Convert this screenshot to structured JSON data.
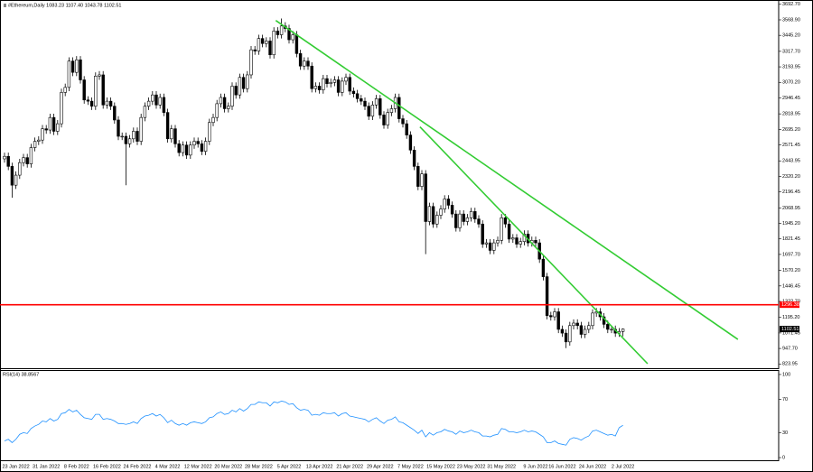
{
  "chart_data": [
    {
      "type": "candlestick",
      "title": "#Ethereum,Daily 1083.23 1107.40 1043.78 1102.51",
      "categories": [
        null,
        null,
        null,
        "23 Jan 2022",
        null,
        null,
        null,
        null,
        null,
        null,
        null,
        "31 Jan 2022",
        null,
        null,
        null,
        null,
        null,
        null,
        null,
        "8 Feb 2022",
        null,
        null,
        null,
        null,
        null,
        null,
        null,
        "16 Feb 2022",
        null,
        null,
        null,
        null,
        null,
        null,
        null,
        "24 Feb 2022",
        null,
        null,
        null,
        null,
        null,
        null,
        null,
        "4 Mar 2022",
        null,
        null,
        null,
        null,
        null,
        null,
        null,
        "12 Mar 2022",
        null,
        null,
        null,
        null,
        null,
        null,
        null,
        "20 Mar 2022",
        null,
        null,
        null,
        null,
        null,
        null,
        null,
        "28 Mar 2022",
        null,
        null,
        null,
        null,
        null,
        null,
        null,
        "5 Apr 2022",
        null,
        null,
        null,
        null,
        null,
        null,
        null,
        "13 Apr 2022",
        null,
        null,
        null,
        null,
        null,
        null,
        null,
        "21 Apr 2022",
        null,
        null,
        null,
        null,
        null,
        null,
        null,
        "29 Apr 2022",
        null,
        null,
        null,
        null,
        null,
        null,
        null,
        "7 May 2022",
        null,
        null,
        null,
        null,
        null,
        null,
        null,
        "15 May 2022",
        null,
        null,
        null,
        null,
        null,
        null,
        null,
        "23 May 2022",
        null,
        null,
        null,
        null,
        null,
        null,
        null,
        "31 May 2022",
        null,
        null,
        null,
        null,
        null,
        null,
        null,
        null,
        "9 Jun 2022",
        null,
        null,
        null,
        null,
        null,
        null,
        "16 Jun 2022",
        null,
        null,
        null,
        null,
        null,
        null,
        null,
        "24 Jun 2022",
        null,
        null,
        null,
        null,
        null,
        null,
        null,
        "2 Jul 2022"
      ],
      "open": [
        2460,
        2480,
        2400,
        2250,
        2330,
        2430,
        2470,
        2420,
        2550,
        2600,
        2610,
        2700,
        2690,
        2790,
        2680,
        2740,
        2990,
        3030,
        3240,
        3150,
        3250,
        3090,
        2930,
        2920,
        2880,
        3120,
        3130,
        2890,
        2920,
        2880,
        2770,
        2640,
        2640,
        2580,
        2620,
        2680,
        2600,
        2790,
        2880,
        2920,
        2970,
        2890,
        2950,
        2830,
        2620,
        2700,
        2580,
        2510,
        2570,
        2490,
        2570,
        2600,
        2580,
        2520,
        2600,
        2750,
        2790,
        2900,
        2950,
        2860,
        2880,
        3040,
        2970,
        3110,
        3020,
        3130,
        3330,
        3320,
        3420,
        3380,
        3400,
        3290,
        3480,
        3450,
        3520,
        3500,
        3410,
        3450,
        3300,
        3200,
        3240,
        3200,
        3020,
        3040,
        3010,
        3100,
        3060,
        3070,
        3090,
        2990,
        3080,
        3110,
        3000,
        2980,
        2940,
        2920,
        2880,
        2800,
        2890,
        2940,
        2810,
        2730,
        2830,
        2860,
        2950,
        2780,
        2740,
        2650,
        2530,
        2400,
        2240,
        2340,
        1960,
        2080,
        1940,
        2010,
        2060,
        2140,
        2090,
        2020,
        1910,
        2020,
        1960,
        1990,
        2040,
        1980,
        1940,
        1780,
        1790,
        1730,
        1790,
        1810,
        1990,
        1940,
        1820,
        1830,
        1780,
        1800,
        1860,
        1790,
        1810,
        1790,
        1660,
        1520,
        1210,
        1200,
        1240,
        1100,
        1070,
        1000,
        1130,
        1150,
        1130,
        1060,
        1100,
        1130,
        1230,
        1240,
        1200,
        1140,
        1100,
        1100,
        1070,
        1083.23
      ],
      "high": [
        2510,
        2510,
        2430,
        2360,
        2460,
        2500,
        2500,
        2580,
        2630,
        2640,
        2730,
        2730,
        2820,
        2820,
        2770,
        3020,
        3060,
        3270,
        3270,
        3280,
        3280,
        3120,
        2960,
        2950,
        3150,
        3160,
        3160,
        2950,
        2950,
        2910,
        2800,
        2670,
        2670,
        2650,
        2710,
        2710,
        2820,
        2910,
        2950,
        3000,
        3000,
        2980,
        2980,
        2860,
        2730,
        2730,
        2610,
        2600,
        2600,
        2600,
        2630,
        2630,
        2610,
        2630,
        2780,
        2820,
        2930,
        2980,
        2980,
        2910,
        3070,
        3070,
        3140,
        3140,
        3160,
        3360,
        3360,
        3450,
        3450,
        3430,
        3430,
        3510,
        3510,
        3580,
        3550,
        3530,
        3480,
        3480,
        3330,
        3270,
        3270,
        3230,
        3070,
        3070,
        3130,
        3130,
        3100,
        3120,
        3120,
        3110,
        3140,
        3140,
        3030,
        3010,
        2970,
        2950,
        2910,
        2920,
        2970,
        2970,
        2840,
        2860,
        2890,
        2980,
        2980,
        2810,
        2770,
        2680,
        2560,
        2430,
        2370,
        2370,
        2110,
        2110,
        2040,
        2090,
        2170,
        2170,
        2120,
        2050,
        2050,
        2050,
        2020,
        2070,
        2070,
        2010,
        1970,
        1820,
        1820,
        1820,
        1840,
        2020,
        2020,
        1970,
        1860,
        1860,
        1830,
        1890,
        1890,
        1840,
        1840,
        1820,
        1690,
        1550,
        1240,
        1270,
        1270,
        1130,
        1100,
        1160,
        1180,
        1180,
        1160,
        1130,
        1160,
        1260,
        1270,
        1270,
        1230,
        1170,
        1130,
        1130,
        1110,
        1107.4
      ],
      "low": [
        2430,
        2370,
        2150,
        2220,
        2300,
        2400,
        2390,
        2390,
        2520,
        2570,
        2580,
        2660,
        2660,
        2650,
        2650,
        2710,
        2960,
        3000,
        3120,
        3120,
        3060,
        2900,
        2890,
        2850,
        2850,
        3090,
        2860,
        2860,
        2850,
        2740,
        2610,
        2610,
        2250,
        2550,
        2590,
        2570,
        2570,
        2760,
        2850,
        2890,
        2860,
        2860,
        2800,
        2590,
        2590,
        2550,
        2480,
        2480,
        2460,
        2460,
        2540,
        2550,
        2490,
        2490,
        2570,
        2720,
        2760,
        2870,
        2830,
        2830,
        2850,
        2940,
        2940,
        2990,
        2990,
        3100,
        3290,
        3290,
        3350,
        3350,
        3260,
        3260,
        3420,
        3420,
        3470,
        3380,
        3380,
        3270,
        3170,
        3170,
        3170,
        2990,
        2990,
        2980,
        2980,
        3030,
        3030,
        3040,
        2960,
        2960,
        3050,
        2970,
        2950,
        2910,
        2890,
        2850,
        2770,
        2770,
        2860,
        2780,
        2700,
        2700,
        2800,
        2830,
        2750,
        2710,
        2620,
        2500,
        2370,
        2210,
        2210,
        1700,
        1930,
        1910,
        1910,
        1980,
        2030,
        2060,
        1990,
        1880,
        1880,
        1930,
        1930,
        1960,
        1950,
        1910,
        1750,
        1750,
        1700,
        1700,
        1760,
        1780,
        1910,
        1790,
        1790,
        1750,
        1750,
        1770,
        1760,
        1760,
        1760,
        1630,
        1490,
        1180,
        1170,
        1170,
        1070,
        1040,
        950,
        970,
        1100,
        1100,
        1030,
        1030,
        1070,
        1100,
        1200,
        1170,
        1110,
        1070,
        1070,
        1040,
        1040,
        1043.78
      ],
      "close": [
        2480,
        2400,
        2250,
        2330,
        2430,
        2470,
        2420,
        2550,
        2600,
        2610,
        2700,
        2690,
        2790,
        2680,
        2740,
        2990,
        3030,
        3240,
        3150,
        3250,
        3090,
        2930,
        2920,
        2880,
        3120,
        3130,
        2890,
        2920,
        2880,
        2770,
        2640,
        2640,
        2580,
        2620,
        2680,
        2600,
        2790,
        2880,
        2920,
        2970,
        2890,
        2950,
        2830,
        2620,
        2700,
        2580,
        2510,
        2570,
        2490,
        2570,
        2600,
        2580,
        2520,
        2600,
        2750,
        2790,
        2900,
        2950,
        2860,
        2880,
        3040,
        2970,
        3110,
        3020,
        3130,
        3330,
        3320,
        3420,
        3380,
        3400,
        3290,
        3480,
        3450,
        3520,
        3500,
        3410,
        3450,
        3300,
        3200,
        3240,
        3200,
        3020,
        3040,
        3010,
        3100,
        3060,
        3070,
        3090,
        2990,
        3080,
        3110,
        3000,
        2980,
        2940,
        2920,
        2880,
        2800,
        2890,
        2940,
        2810,
        2730,
        2830,
        2860,
        2950,
        2780,
        2740,
        2650,
        2530,
        2400,
        2240,
        2340,
        1960,
        2080,
        1940,
        2010,
        2060,
        2140,
        2090,
        2020,
        1910,
        2020,
        1960,
        1990,
        2040,
        1980,
        1940,
        1780,
        1790,
        1730,
        1790,
        1810,
        1990,
        1940,
        1820,
        1830,
        1780,
        1800,
        1860,
        1790,
        1810,
        1790,
        1660,
        1520,
        1210,
        1200,
        1240,
        1100,
        1070,
        1000,
        1130,
        1150,
        1130,
        1060,
        1100,
        1130,
        1230,
        1240,
        1200,
        1140,
        1100,
        1100,
        1070,
        1083.23,
        1102.51
      ],
      "up_color": "#ffffff",
      "down_color": "#000000",
      "wick_color": "#000000",
      "ylim": [
        790,
        3720
      ],
      "yticks": [
        {
          "value": 3692.7,
          "label": "3692.70"
        },
        {
          "value": 3568.9,
          "label": "3568.90"
        },
        {
          "value": 3445.2,
          "label": "3445.20"
        },
        {
          "value": 3317.7,
          "label": "3317.70"
        },
        3193.95,
        {
          "value": 3070.2,
          "label": "3070.20"
        },
        2946.45,
        2818.95,
        {
          "value": 2695.2,
          "label": "2695.20"
        },
        2571.45,
        2443.95,
        {
          "value": 2320.2,
          "label": "2320.20"
        },
        2196.45,
        2068.95,
        {
          "value": 1945.2,
          "label": "1945.20"
        },
        1821.45,
        {
          "value": 1697.7,
          "label": "1697.70"
        },
        {
          "value": 1570.2,
          "label": "1570.20"
        },
        1446.45,
        {
          "value": 1322.7,
          "label": "1322.70"
        },
        {
          "value": 1195.2,
          "label": "1195.20"
        },
        1071.45,
        {
          "value": 947.7,
          "label": "947.70"
        },
        823.95
      ],
      "hline": {
        "value": 1296.38,
        "color": "#ff0000"
      },
      "trendlines": [
        {
          "x": [
            71.5,
            193.3
          ],
          "y": [
            3564,
            1020
          ],
          "color": "#33cc33"
        },
        {
          "x": [
            109.5,
            169.5
          ],
          "y": [
            2715,
            826
          ],
          "color": "#33cc33"
        }
      ]
    },
    {
      "type": "line",
      "title": "RSI(14) 38.8567",
      "color": "#1e90ff",
      "values": [
        20,
        22,
        18,
        22,
        28,
        30,
        29,
        35,
        38,
        40,
        44,
        43,
        47,
        44,
        46,
        53,
        54,
        58,
        55,
        57,
        52,
        48,
        47,
        46,
        52,
        52,
        46,
        47,
        46,
        44,
        41,
        41,
        40,
        41,
        43,
        41,
        47,
        50,
        51,
        53,
        50,
        52,
        48,
        42,
        45,
        41,
        39,
        41,
        39,
        42,
        43,
        42,
        41,
        43,
        48,
        49,
        53,
        55,
        52,
        53,
        57,
        55,
        59,
        56,
        59,
        64,
        64,
        67,
        66,
        66,
        62,
        67,
        66,
        68,
        67,
        64,
        65,
        60,
        57,
        58,
        57,
        51,
        52,
        51,
        54,
        53,
        53,
        54,
        50,
        53,
        54,
        50,
        49,
        48,
        47,
        46,
        43,
        46,
        48,
        44,
        41,
        45,
        46,
        49,
        43,
        42,
        39,
        36,
        33,
        29,
        33,
        25,
        30,
        27,
        30,
        31,
        34,
        32,
        31,
        28,
        32,
        30,
        31,
        33,
        31,
        30,
        26,
        26,
        25,
        27,
        28,
        35,
        34,
        31,
        31,
        30,
        31,
        33,
        31,
        32,
        31,
        28,
        25,
        18,
        18,
        20,
        17,
        16,
        15,
        22,
        24,
        23,
        21,
        24,
        26,
        32,
        33,
        31,
        29,
        27,
        28,
        26,
        36,
        38.8567
      ],
      "ylim": [
        -4.3,
        104.3
      ],
      "yticks": [
        100,
        70,
        30,
        0
      ]
    }
  ]
}
